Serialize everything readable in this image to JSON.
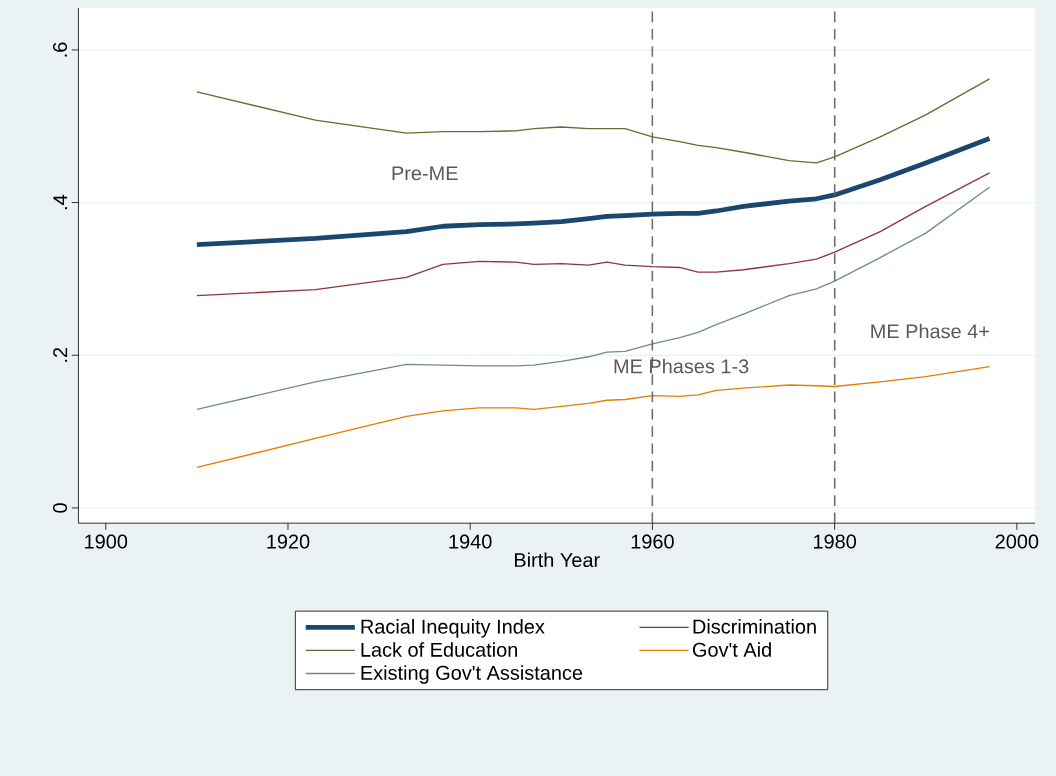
{
  "chart_data": {
    "type": "line",
    "xlabel": "Birth Year",
    "xlim": [
      1897,
      2002
    ],
    "xticks": [
      1900,
      1920,
      1940,
      1960,
      1980,
      2000
    ],
    "ylim": [
      -0.02,
      0.655
    ],
    "yticks": [
      {
        "value": 0,
        "label": "0"
      },
      {
        "value": 0.2,
        "label": ".2"
      },
      {
        "value": 0.4,
        "label": ".4"
      },
      {
        "value": 0.6,
        "label": ".6"
      }
    ],
    "grid": "y",
    "legend": "bottom",
    "x": [
      1910,
      1923,
      1933,
      1937,
      1941,
      1945,
      1947,
      1950,
      1953,
      1955,
      1957,
      1960,
      1963,
      1965,
      1967,
      1970,
      1975,
      1978,
      1980,
      1985,
      1990,
      1997
    ],
    "series": [
      {
        "name": "Racial Inequity Index",
        "color": "#1a476f",
        "values": [
          0.345,
          0.353,
          0.362,
          0.369,
          0.371,
          0.372,
          0.373,
          0.375,
          0.379,
          0.382,
          0.383,
          0.385,
          0.386,
          0.386,
          0.389,
          0.395,
          0.402,
          0.405,
          0.41,
          0.43,
          0.452,
          0.484
        ]
      },
      {
        "name": "Discrimination",
        "color": "#90353b",
        "values": [
          0.278,
          0.286,
          0.302,
          0.319,
          0.323,
          0.322,
          0.319,
          0.32,
          0.318,
          0.322,
          0.318,
          0.316,
          0.315,
          0.309,
          0.309,
          0.312,
          0.32,
          0.326,
          0.335,
          0.362,
          0.395,
          0.439
        ]
      },
      {
        "name": "Lack of Education",
        "color": "#55752f",
        "values": [
          0.545,
          0.508,
          0.491,
          0.493,
          0.493,
          0.494,
          0.497,
          0.499,
          0.497,
          0.497,
          0.497,
          0.486,
          0.48,
          0.475,
          0.472,
          0.466,
          0.455,
          0.452,
          0.46,
          0.486,
          0.515,
          0.562
        ]
      },
      {
        "name": "Gov't Aid",
        "color": "#e37e00",
        "values": [
          0.053,
          0.091,
          0.12,
          0.127,
          0.131,
          0.131,
          0.129,
          0.133,
          0.137,
          0.141,
          0.142,
          0.147,
          0.146,
          0.148,
          0.154,
          0.157,
          0.161,
          0.16,
          0.159,
          0.165,
          0.172,
          0.185
        ]
      },
      {
        "name": "Existing Gov't Assistance",
        "color": "#6e8e84",
        "values": [
          0.129,
          0.165,
          0.188,
          0.187,
          0.186,
          0.186,
          0.187,
          0.192,
          0.198,
          0.204,
          0.205,
          0.215,
          0.223,
          0.23,
          0.24,
          0.254,
          0.278,
          0.287,
          0.297,
          0.328,
          0.36,
          0.42
        ]
      }
    ],
    "ref_lines": [
      {
        "axis": "x",
        "value": 1960,
        "color": "#6e6e6e",
        "line_style": "dashed"
      },
      {
        "axis": "x",
        "value": 1980,
        "color": "#6e6e6e",
        "line_style": "dashed"
      }
    ],
    "annotations": [
      "Pre-ME",
      "ME Phases 1-3",
      "ME Phase 4+"
    ]
  }
}
